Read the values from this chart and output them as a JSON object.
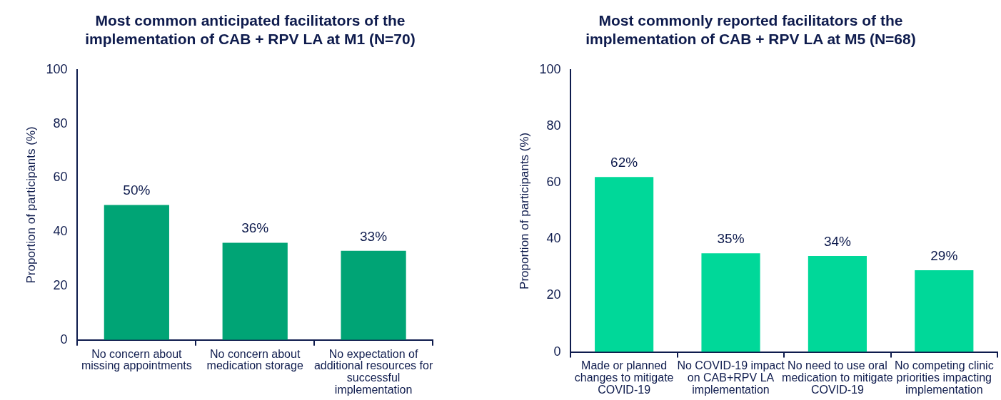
{
  "chart_data": [
    {
      "type": "bar",
      "title": "Most common anticipated facilitators of the implementation of CAB + RPV LA at M1 (N=70)",
      "ylabel": "Proportion of participants (%)",
      "categories": [
        "No concern about missing appointments",
        "No concern about medication storage",
        "No expectation of additional resources for successful implementation"
      ],
      "values": [
        50,
        36,
        33
      ],
      "value_labels": [
        "50%",
        "36%",
        "33%"
      ],
      "color": "#00a475",
      "ylim": [
        0,
        100
      ],
      "yticks": [
        0,
        20,
        40,
        60,
        80,
        100
      ],
      "grid": false,
      "legend": false
    },
    {
      "type": "bar",
      "title": "Most commonly reported facilitators of the implementation of CAB + RPV LA at M5 (N=68)",
      "ylabel": "Proportion of participants (%)",
      "categories": [
        "Made or planned changes to mitigate COVID-19",
        "No COVID-19 impact on CAB+RPV LA implementation",
        "No need to use oral medication to mitigate COVID-19",
        "No competing clinic priorities impacting implementation"
      ],
      "values": [
        62,
        35,
        34,
        29
      ],
      "value_labels": [
        "62%",
        "35%",
        "34%",
        "29%"
      ],
      "color": "#00d899",
      "ylim": [
        0,
        100
      ],
      "yticks": [
        0,
        20,
        40,
        60,
        80,
        100
      ],
      "grid": false,
      "legend": false
    }
  ]
}
